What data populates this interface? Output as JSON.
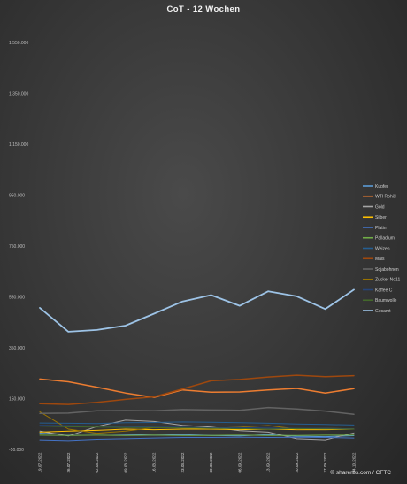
{
  "chart_data": {
    "type": "line",
    "title": "CoT - 12 Wochen",
    "ylim": [
      -50000,
      1550000
    ],
    "y_ticks": [
      "-50.000",
      "150.000",
      "350.000",
      "550.000",
      "750.000",
      "950.000",
      "1.150.000",
      "1.350.000",
      "1.550.000"
    ],
    "y_tick_values": [
      -50000,
      150000,
      350000,
      550000,
      750000,
      950000,
      1150000,
      1350000,
      1550000
    ],
    "grid": false,
    "legend_position": "right",
    "categories": [
      "19.07.2022",
      "26.07.2022",
      "02.08.2022",
      "09.08.2022",
      "16.08.2022",
      "23.08.2022",
      "30.08.2022",
      "06.09.2022",
      "13.09.2022",
      "20.09.2022",
      "27.09.2022",
      "04.10.2022"
    ],
    "series": [
      {
        "name": "Kupfer",
        "color": "#5b9bd5",
        "width": 1.0,
        "values": [
          14000,
          10000,
          12000,
          9000,
          6000,
          8000,
          5000,
          3000,
          8000,
          2000,
          0,
          4000
        ]
      },
      {
        "name": "WTI Rohöl",
        "color": "#ed7d31",
        "width": 1.5,
        "values": [
          227000,
          216000,
          195000,
          172000,
          155000,
          184000,
          175000,
          176000,
          184000,
          190000,
          172000,
          189000
        ]
      },
      {
        "name": "Gold",
        "color": "#a5a5a5",
        "width": 1.0,
        "values": [
          22000,
          3000,
          40000,
          65000,
          60000,
          45000,
          38000,
          24000,
          18000,
          -8000,
          -12000,
          15000
        ]
      },
      {
        "name": "Silber",
        "color": "#ffc000",
        "width": 1.0,
        "values": [
          18000,
          22000,
          25000,
          30000,
          28000,
          30000,
          30000,
          28000,
          30000,
          28000,
          28000,
          30000
        ]
      },
      {
        "name": "Platin",
        "color": "#4472c4",
        "width": 1.0,
        "values": [
          -12000,
          -15000,
          -10000,
          -8000,
          -5000,
          -3000,
          -3000,
          -2000,
          -3000,
          -2000,
          -3000,
          -5000
        ]
      },
      {
        "name": "Palladium",
        "color": "#70ad47",
        "width": 1.0,
        "values": [
          6000,
          5000,
          6000,
          5000,
          6000,
          5000,
          5000,
          6000,
          5000,
          5000,
          6000,
          6000
        ]
      },
      {
        "name": "Weizen",
        "color": "#255e91",
        "width": 1.0,
        "values": [
          54000,
          53000,
          52000,
          55000,
          56000,
          58000,
          57000,
          55000,
          53000,
          50000,
          48000,
          46000
        ]
      },
      {
        "name": "Mais",
        "color": "#9e480e",
        "width": 1.5,
        "values": [
          130000,
          127000,
          135000,
          147000,
          157000,
          188000,
          220000,
          225000,
          235000,
          242000,
          236000,
          240000
        ]
      },
      {
        "name": "Sojabohnen",
        "color": "#636363",
        "width": 1.5,
        "values": [
          92000,
          93000,
          102000,
          103000,
          102000,
          107000,
          105000,
          104000,
          115000,
          109000,
          101000,
          88000
        ]
      },
      {
        "name": "Zucker No11",
        "color": "#997300",
        "width": 1.0,
        "values": [
          98000,
          30000,
          14000,
          22000,
          36000,
          35000,
          32000,
          38000,
          44000,
          30000,
          33000,
          31000
        ]
      },
      {
        "name": "Kaffee C",
        "color": "#264478",
        "width": 1.0,
        "values": [
          45000,
          44000,
          42000,
          40000,
          38000,
          37000,
          35000,
          36000,
          34000,
          33000,
          33000,
          31000
        ]
      },
      {
        "name": "Baumwolle",
        "color": "#43682b",
        "width": 1.0,
        "values": [
          42000,
          39000,
          38000,
          36000,
          36000,
          35000,
          33000,
          32000,
          30000,
          32000,
          31000,
          30000
        ]
      },
      {
        "name": "Gesamt",
        "color": "#9dc3e6",
        "width": 1.8,
        "values": [
          507000,
          413000,
          420000,
          437000,
          484000,
          532000,
          557000,
          515000,
          572000,
          552000,
          502000,
          578000
        ]
      }
    ]
  },
  "footer": {
    "source_text": "© sharerbs.com / CFTC"
  }
}
